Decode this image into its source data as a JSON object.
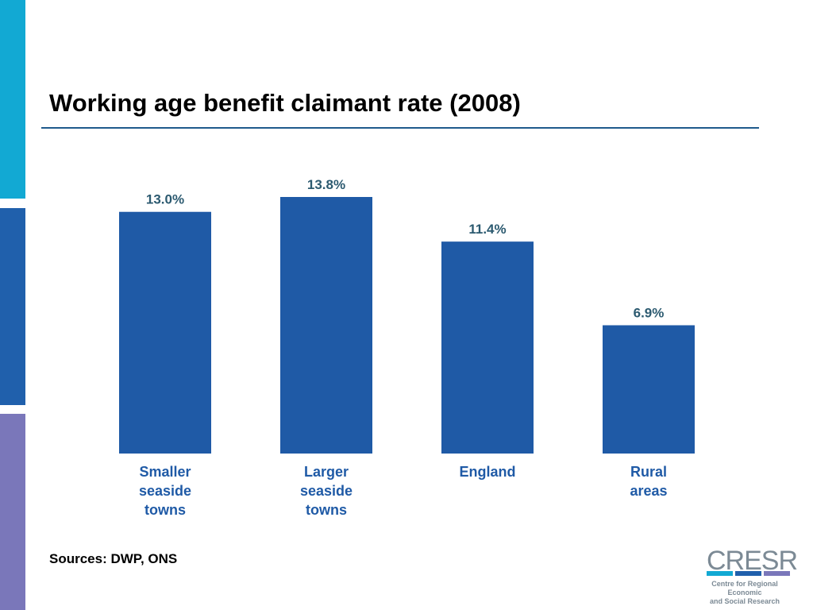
{
  "colors": {
    "stripe_top": "#12a9d3",
    "stripe_mid": "#2060ac",
    "stripe_bot": "#7a77ba",
    "title_rule": "#1f5a8c",
    "bar": "#1f5aa6",
    "data_label": "#2c5a70",
    "category_label": "#1f5aa6",
    "logo_grey": "#7c8a95"
  },
  "chart_data": {
    "type": "bar",
    "title": "Working age benefit claimant rate (2008)",
    "categories": [
      "Smaller seaside towns",
      "Larger seaside towns",
      "England",
      "Rural areas"
    ],
    "category_lines": [
      [
        "Smaller",
        "seaside",
        "towns"
      ],
      [
        "Larger",
        "seaside",
        "towns"
      ],
      [
        "England"
      ],
      [
        "Rural",
        "areas"
      ]
    ],
    "values": [
      13.0,
      13.8,
      11.4,
      6.9
    ],
    "data_labels": [
      "13.0%",
      "13.8%",
      "11.4%",
      "6.9%"
    ],
    "xlabel": "",
    "ylabel": "",
    "ylim": [
      0,
      13.8
    ],
    "grid": false,
    "legend": "none"
  },
  "footer": {
    "sources": "Sources: DWP, ONS"
  },
  "logo": {
    "word": "CRESR",
    "line1": "Centre for Regional Economic",
    "line2": "and Social Research",
    "bar_colors": [
      "#12a9d3",
      "#2060ac",
      "#7a77ba"
    ]
  }
}
